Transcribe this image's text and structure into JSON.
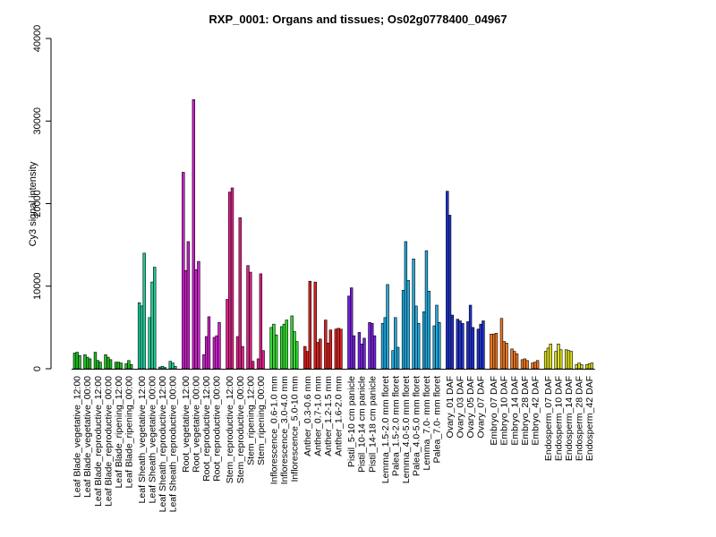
{
  "chart_data": {
    "type": "bar",
    "title": "RXP_0001: Organs and tissues; Os02g0778400_04967",
    "xlabel": "",
    "ylabel": "Cy3 signal intensity",
    "ylim": [
      0,
      40000
    ],
    "yticks": [
      0,
      10000,
      20000,
      30000,
      40000
    ],
    "categories": [
      "Leaf Blade_vegetative_12:00",
      "Leaf Blade_vegetative_00:00",
      "Leaf Blade_reproductive_12:00",
      "Leaf Blade_reproductive_00:00",
      "Leaf Blade_ripening_12:00",
      "Leaf Blade_ripening_00:00",
      "Leaf Sheath_vegetative_12:00",
      "Leaf Sheath_vegetative_00:00",
      "Leaf Sheath_reproductive_12:00",
      "Leaf Sheath_reproductive_00:00",
      "Root_vegetative_12:00",
      "Root_vegetative_00:00",
      "Root_reproductive_12:00",
      "Root_reproductive_00:00",
      "Stem_reproductive_12:00",
      "Stem_reproductive_00:00",
      "Stem_ripening_12:00",
      "Stem_ripening_00:00",
      "Inflorescence_0.6-1.0 mm",
      "Inflorescence_3.0-4.0 mm",
      "Inflorescence_5.0-10 mm",
      "Anther_0.3-0.6 mm",
      "Anther_0.7-1.0 mm",
      "Anther_1.2-1.5 mm",
      "Anther_1.6-2.0 mm",
      "Pistil_5-10 cm panicle",
      "Pistil_10-14 cm panicle",
      "Pistil_14-18 cm panicle",
      "Lemma_1.5-2.0 mm floret",
      "Palea_1.5-2.0 mm floret",
      "Lemma_4.0-5.0 mm floret",
      "Palea_4.0-5.0 mm floret",
      "Lemma_7.0- mm floret",
      "Palea_7.0- mm floret",
      "Ovary_01 DAF",
      "Ovary_03 DAF",
      "Ovary_05 DAF",
      "Ovary_07 DAF",
      "Embryo_07 DAF",
      "Embryo_10 DAF",
      "Embryo_14 DAF",
      "Embryo_28 DAF",
      "Embryo_42 DAF",
      "Endosperm_07 DAF",
      "Endosperm_10 DAF",
      "Endosperm_14 DAF",
      "Endosperm_28 DAF",
      "Endosperm_42 DAF"
    ],
    "groups": [
      {
        "color": "#22bb22",
        "values": [
          [
            1900,
            2000,
            1600
          ],
          [
            1700,
            1400,
            1200
          ],
          [
            2000,
            1000,
            800
          ],
          [
            1700,
            1400,
            1100
          ],
          [
            800,
            800,
            700
          ],
          [
            600,
            1000,
            500
          ]
        ]
      },
      {
        "color": "#22cc99",
        "values": [
          [
            8000,
            7600,
            14000
          ],
          [
            6200,
            10500,
            12300
          ],
          [
            200,
            300,
            150
          ],
          [
            900,
            700,
            300
          ]
        ]
      },
      {
        "color": "#cc22cc",
        "values": [
          [
            23800,
            11900,
            15400
          ],
          [
            32600,
            12000,
            13000
          ],
          [
            1700,
            3900,
            6300
          ],
          [
            3800,
            4000,
            5600
          ]
        ]
      },
      {
        "color": "#dd2288",
        "values": [
          [
            8400,
            21400,
            21900
          ],
          [
            3900,
            18300,
            2700
          ],
          [
            12500,
            11700,
            900
          ],
          [
            1200,
            11500,
            2200
          ]
        ]
      },
      {
        "color": "#33dd33",
        "values": [
          [
            5000,
            5400,
            4100
          ],
          [
            5100,
            5400,
            5900
          ],
          [
            6400,
            4500,
            3300
          ]
        ]
      },
      {
        "color": "#dd2222",
        "values": [
          [
            2700,
            2100,
            10600
          ],
          [
            10500,
            3200,
            3600
          ],
          [
            5900,
            3100,
            4700
          ],
          [
            4800,
            4900,
            4800
          ]
        ]
      },
      {
        "color": "#7722dd",
        "values": [
          [
            8800,
            9800,
            4000
          ],
          [
            4400,
            3000,
            3700
          ],
          [
            5600,
            5500,
            4000
          ]
        ]
      },
      {
        "color": "#22aadd",
        "values": [
          [
            5500,
            6200,
            10200
          ],
          [
            2200,
            6200,
            2600
          ],
          [
            9500,
            15400,
            10700
          ],
          [
            13300,
            7600,
            5500
          ],
          [
            6900,
            14300,
            9400
          ],
          [
            5200,
            7700,
            5600
          ]
        ]
      },
      {
        "color": "#2233cc",
        "values": [
          [
            21500,
            18600,
            6500
          ],
          [
            6000,
            5800,
            5500
          ],
          [
            5700,
            7700,
            5000
          ],
          [
            4800,
            5400,
            5800
          ]
        ]
      },
      {
        "color": "#ee7722",
        "values": [
          [
            4200,
            4200,
            4300
          ],
          [
            6100,
            3300,
            3100
          ],
          [
            2400,
            2100,
            1800
          ],
          [
            1100,
            1200,
            1000
          ],
          [
            700,
            800,
            1000
          ]
        ]
      },
      {
        "color": "#dddd22",
        "values": [
          [
            2100,
            2500,
            3000
          ],
          [
            2100,
            3000,
            2300
          ],
          [
            2300,
            2200,
            2100
          ],
          [
            500,
            700,
            500
          ],
          [
            500,
            600,
            700
          ]
        ]
      }
    ]
  }
}
